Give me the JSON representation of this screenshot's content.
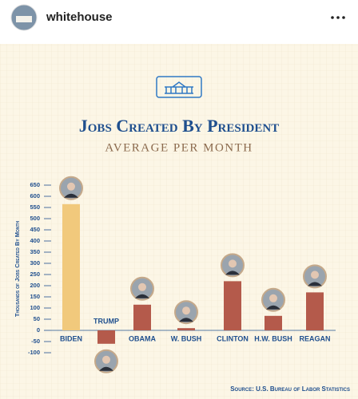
{
  "header": {
    "username": "whitehouse"
  },
  "chart_data": {
    "type": "bar",
    "title": "Jobs Created By President",
    "subtitle": "AVERAGE PER MONTH",
    "y_label": "Thousands of Jobs Created By Month",
    "source": "Source: U.S. Bureau of Labor Statistics",
    "categories": [
      "BIDEN",
      "TRUMP",
      "OBAMA",
      "W. BUSH",
      "CLINTON",
      "H.W. BUSH",
      "REAGAN"
    ],
    "values": [
      565,
      -60,
      115,
      10,
      220,
      65,
      170
    ],
    "colors": [
      "#f1c97c",
      "#b45a4b",
      "#b45a4b",
      "#b45a4b",
      "#b45a4b",
      "#b45a4b",
      "#b45a4b"
    ],
    "ylim": [
      -100,
      650
    ],
    "yticks": [
      -100,
      -50,
      0,
      50,
      100,
      150,
      200,
      250,
      300,
      350,
      400,
      450,
      500,
      550,
      600,
      650
    ],
    "grid": false
  }
}
